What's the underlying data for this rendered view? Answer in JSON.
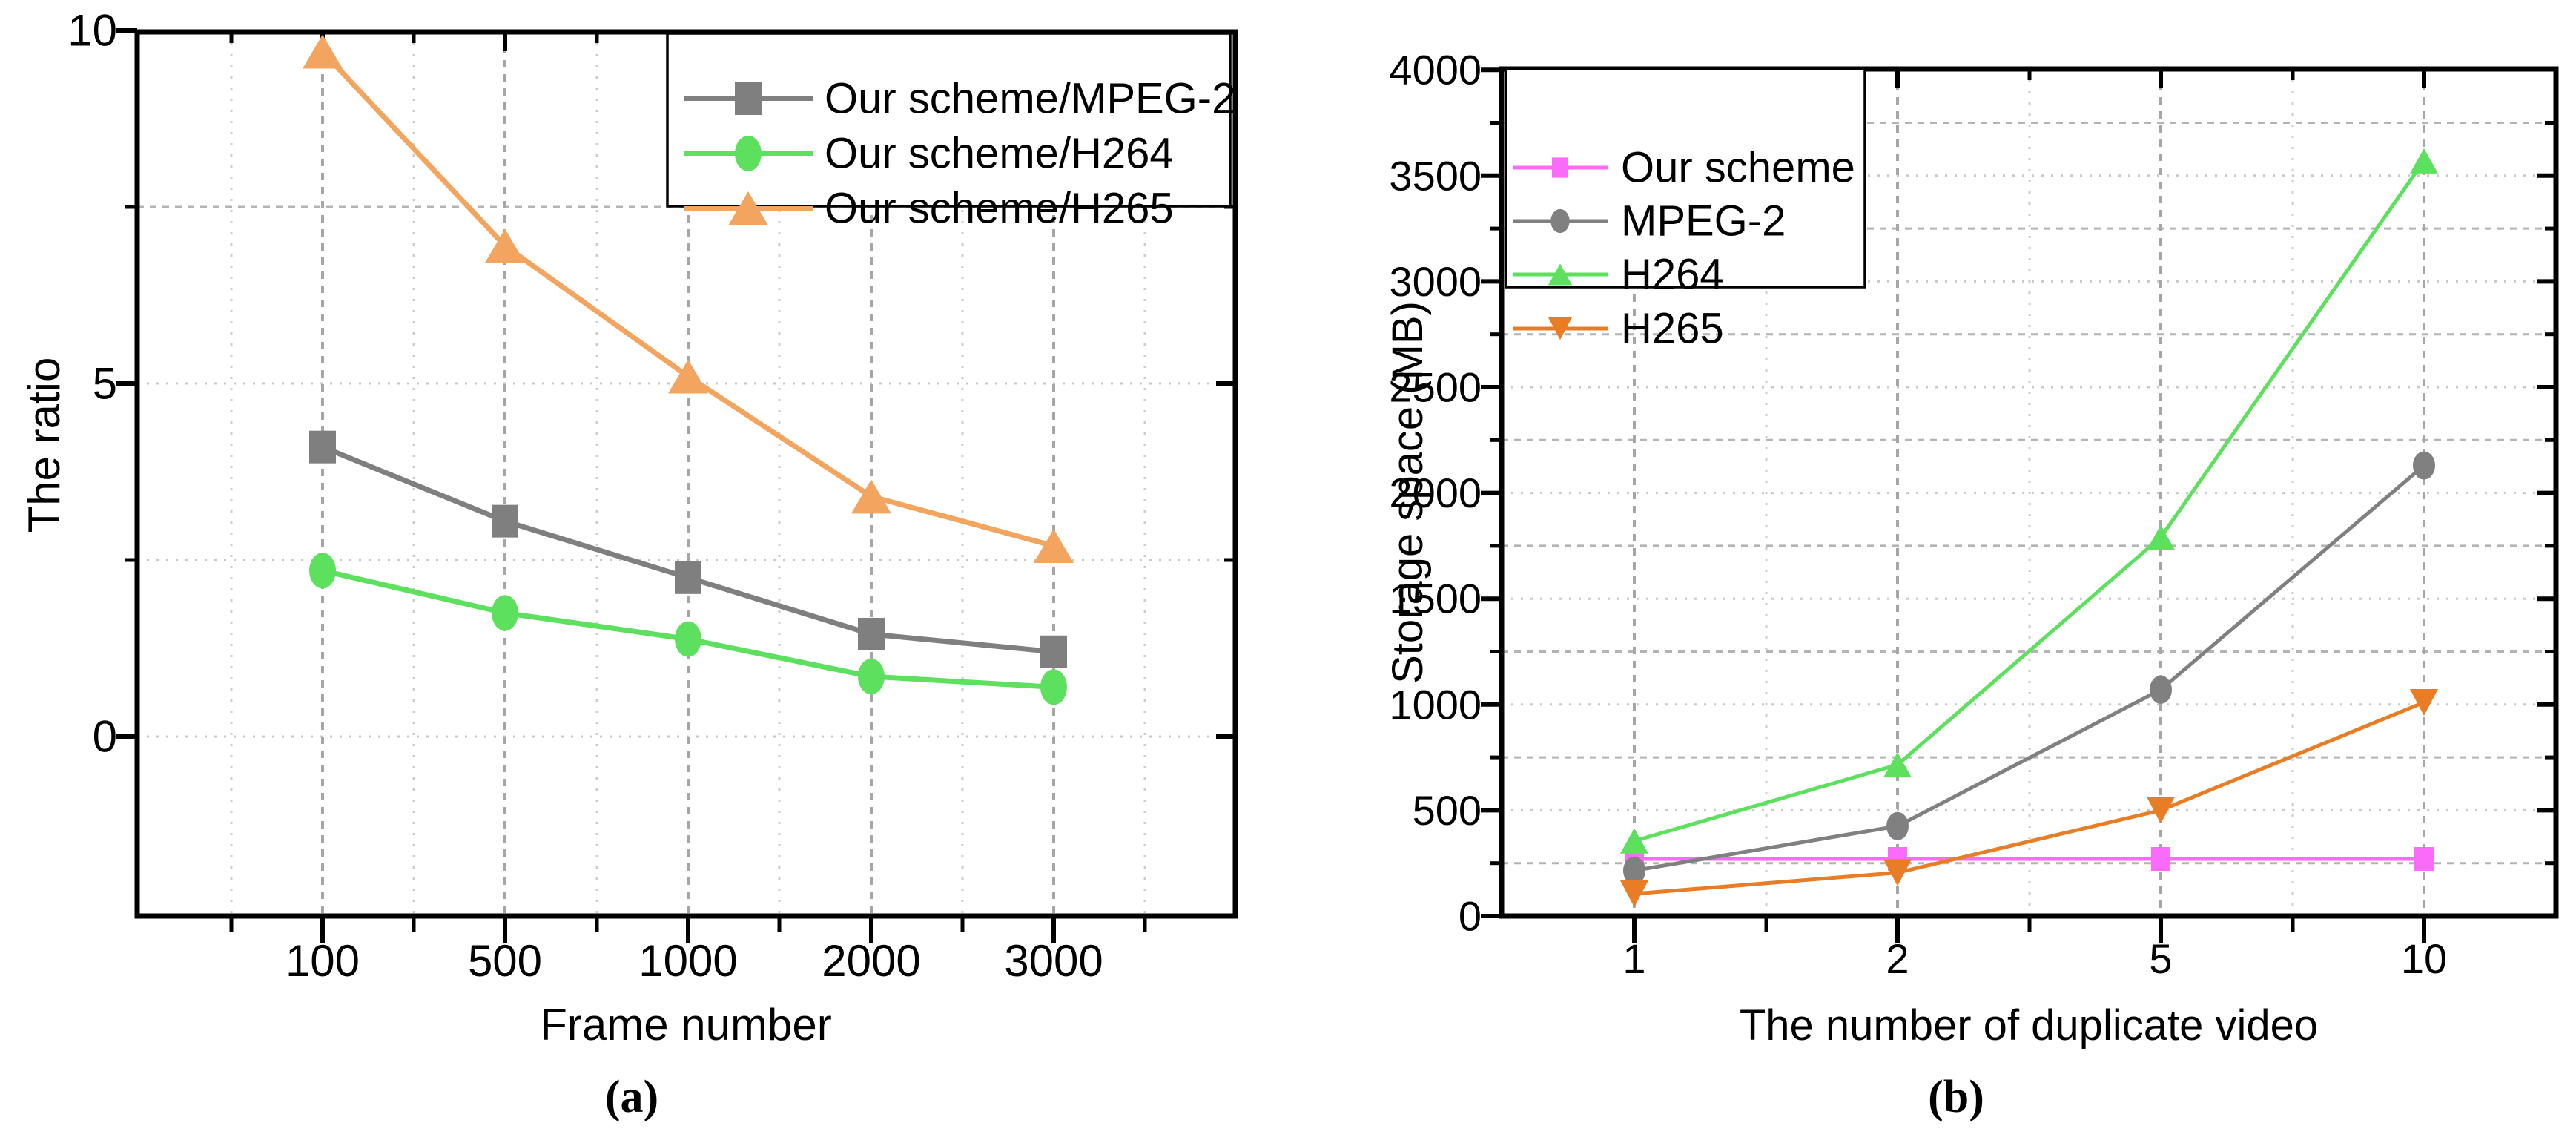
{
  "figure": {
    "captions": {
      "a": "(a)",
      "b": "(b)"
    }
  },
  "colors": {
    "frame": "#000000",
    "grid_major_dash": "#a6a6a6",
    "grid_minor_dot": "#cccccc",
    "grid_h_dot": "#c8c8c8",
    "grid_h_dash": "#b4b4b4",
    "background": "#ffffff"
  },
  "chart_data": [
    {
      "panel": "a",
      "type": "line",
      "title": "",
      "xlabel": "Frame number",
      "ylabel": "The ratio",
      "x": [
        100,
        500,
        1000,
        2000,
        3000
      ],
      "x_tick_labels": [
        "100",
        "500",
        "1000",
        "2000",
        "3000"
      ],
      "y_major_ticks": [
        0,
        5,
        10
      ],
      "y_tick_labels": [
        "0",
        "5",
        "10"
      ],
      "y_minor_ticks": [
        2.5,
        7.5
      ],
      "ylim": [
        -2.56,
        10
      ],
      "grid": "horizontal dotted every 2.5; vertical dashed at majors, dotted at minors",
      "legend_position": "top-right-inside",
      "series": [
        {
          "name": "Our scheme/MPEG-2",
          "marker": "square",
          "color": "#7f7f7f",
          "values": [
            4.1,
            3.05,
            2.25,
            1.45,
            1.2
          ]
        },
        {
          "name": "Our scheme/H264",
          "marker": "circle",
          "color": "#5de05d",
          "values": [
            2.35,
            1.75,
            1.38,
            0.85,
            0.7
          ]
        },
        {
          "name": "Our scheme/H265",
          "marker": "triangle-up",
          "color": "#f3a45f",
          "values": [
            9.7,
            6.95,
            5.1,
            3.4,
            2.7
          ]
        }
      ]
    },
    {
      "panel": "b",
      "type": "line",
      "title": "",
      "xlabel": "The number of duplicate video",
      "ylabel": "Storage space (MB)",
      "x": [
        1,
        2,
        5,
        10
      ],
      "x_tick_labels": [
        "1",
        "2",
        "5",
        "10"
      ],
      "y_major_ticks": [
        0,
        500,
        1000,
        1500,
        2000,
        2500,
        3000,
        3500,
        4000
      ],
      "y_tick_labels": [
        "0",
        "500",
        "1000",
        "1500",
        "2000",
        "2500",
        "3000",
        "3500",
        "4000"
      ],
      "y_minor_ticks": [
        250,
        750,
        1250,
        1750,
        2250,
        2750,
        3250,
        3750
      ],
      "ylim": [
        0,
        4000
      ],
      "grid": "horizontal dotted at 500s, dashed at 250s; vertical dashed at majors, dotted at minors",
      "legend_position": "top-left-inside",
      "series": [
        {
          "name": "Our scheme",
          "marker": "square",
          "color": "#fa6bfa",
          "values": [
            270,
            270,
            270,
            270
          ]
        },
        {
          "name": "MPEG-2",
          "marker": "circle",
          "color": "#808080",
          "values": [
            215,
            425,
            1070,
            2130
          ]
        },
        {
          "name": "H264",
          "marker": "triangle-up",
          "color": "#5de05d",
          "values": [
            355,
            715,
            1790,
            3570
          ]
        },
        {
          "name": "H265",
          "marker": "triangle-down",
          "color": "#e87d26",
          "values": [
            105,
            205,
            500,
            1010
          ]
        }
      ]
    }
  ]
}
